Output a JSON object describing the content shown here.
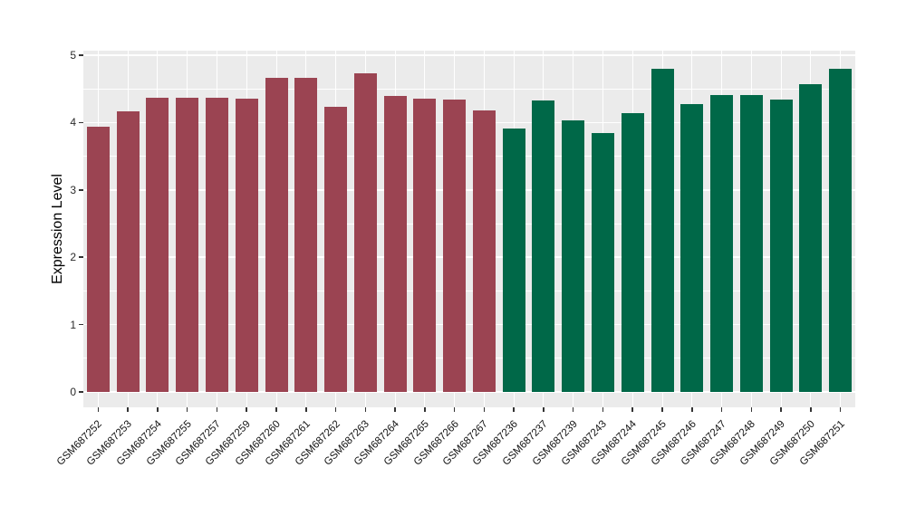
{
  "chart_data": {
    "type": "bar",
    "title": "",
    "xlabel": "",
    "ylabel": "Expression Level",
    "ylim": [
      0,
      5.07
    ],
    "y_major_ticks": [
      0,
      1,
      2,
      3,
      4,
      5
    ],
    "y_minor_ticks": [
      0.5,
      1.5,
      2.5,
      3.5,
      4.5
    ],
    "grid": "on",
    "legend": "none",
    "categories": [
      "GSM687252",
      "GSM687253",
      "GSM687254",
      "GSM687255",
      "GSM687257",
      "GSM687259",
      "GSM687260",
      "GSM687261",
      "GSM687262",
      "GSM687263",
      "GSM687264",
      "GSM687265",
      "GSM687266",
      "GSM687267",
      "GSM687236",
      "GSM687237",
      "GSM687239",
      "GSM687243",
      "GSM687244",
      "GSM687245",
      "GSM687246",
      "GSM687247",
      "GSM687248",
      "GSM687249",
      "GSM687250",
      "GSM687251"
    ],
    "values": [
      3.94,
      4.17,
      4.37,
      4.37,
      4.37,
      4.35,
      4.67,
      4.67,
      4.23,
      4.73,
      4.39,
      4.35,
      4.34,
      4.18,
      3.91,
      4.33,
      4.03,
      3.85,
      4.14,
      4.8,
      4.27,
      4.41,
      4.41,
      4.34,
      4.57,
      4.8
    ],
    "bar_groups": [
      "group1",
      "group1",
      "group1",
      "group1",
      "group1",
      "group1",
      "group1",
      "group1",
      "group1",
      "group1",
      "group1",
      "group1",
      "group1",
      "group1",
      "group2",
      "group2",
      "group2",
      "group2",
      "group2",
      "group2",
      "group2",
      "group2",
      "group2",
      "group2",
      "group2",
      "group2"
    ],
    "group_colors": {
      "group1": "#9B4452",
      "group2": "#006848"
    },
    "colors": {
      "panel_bg": "#EBEBEB",
      "gridline": "#FFFFFF",
      "axis_text": "#2b2b2b",
      "tick_mark": "#333333"
    }
  }
}
